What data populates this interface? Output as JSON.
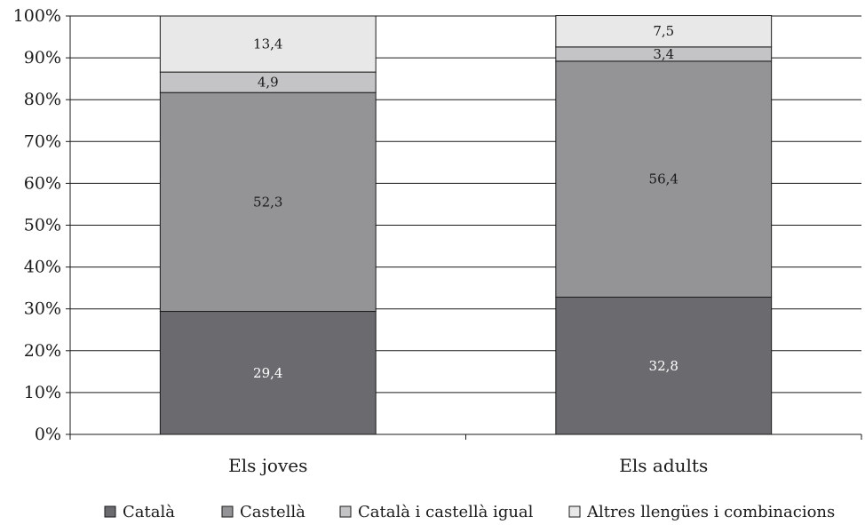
{
  "chart_data": {
    "type": "bar",
    "stacked": true,
    "percent_stacked": true,
    "categories": [
      "Els joves",
      "Els adults"
    ],
    "series": [
      {
        "name": "Català",
        "values": [
          29.4,
          32.8
        ],
        "color": "#6b6b6f",
        "label_color": "#ffffff"
      },
      {
        "name": "Castellà",
        "values": [
          52.3,
          56.4
        ],
        "color": "#949497",
        "label_color": "#1a1a1a"
      },
      {
        "name": "Català i castellà igual",
        "values": [
          4.9,
          3.4
        ],
        "color": "#c4c4c6",
        "label_color": "#1a1a1a"
      },
      {
        "name": "Altres llengües i combinacions",
        "values": [
          13.4,
          7.5
        ],
        "color": "#e8e8e9",
        "label_color": "#1a1a1a"
      }
    ],
    "data_labels": [
      [
        "29,4",
        "32,8"
      ],
      [
        "52,3",
        "56,4"
      ],
      [
        "4,9",
        "3,4"
      ],
      [
        "13,4",
        "7,5"
      ]
    ],
    "yticks": [
      "0%",
      "10%",
      "20%",
      "30%",
      "40%",
      "50%",
      "60%",
      "70%",
      "80%",
      "90%",
      "100%"
    ],
    "ylim": [
      0,
      100
    ],
    "grid": true,
    "legend_position": "bottom",
    "title": "",
    "xlabel": "",
    "ylabel": ""
  }
}
